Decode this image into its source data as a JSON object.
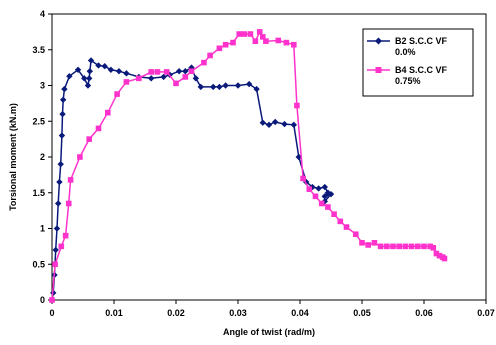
{
  "chart_data": {
    "type": "line",
    "xlabel": "Angle of twist (rad/m)",
    "ylabel": "Torsional moment (kN.m)",
    "xlim": [
      0,
      0.07
    ],
    "ylim": [
      0,
      4
    ],
    "xticks": [
      "0",
      "0.01",
      "0.02",
      "0.03",
      "0.04",
      "0.05",
      "0.06",
      "0.07"
    ],
    "yticks": [
      "0",
      "0.5",
      "1",
      "1.5",
      "2",
      "2.5",
      "3",
      "3.5",
      "4"
    ],
    "grid": false,
    "legend_position": "right",
    "series": [
      {
        "legend_line1": "B2 S.C.C VF",
        "legend_line2": "0.0%",
        "color": "#0a1a7a",
        "marker": "diamond",
        "points": [
          [
            0.0,
            0.0
          ],
          [
            0.0002,
            0.1
          ],
          [
            0.0004,
            0.35
          ],
          [
            0.0006,
            0.7
          ],
          [
            0.0008,
            1.0
          ],
          [
            0.001,
            1.35
          ],
          [
            0.0012,
            1.65
          ],
          [
            0.0014,
            1.9
          ],
          [
            0.0016,
            2.3
          ],
          [
            0.0017,
            2.6
          ],
          [
            0.0018,
            2.8
          ],
          [
            0.002,
            2.95
          ],
          [
            0.0028,
            3.13
          ],
          [
            0.0042,
            3.22
          ],
          [
            0.0052,
            3.1
          ],
          [
            0.0058,
            3.0
          ],
          [
            0.006,
            3.1
          ],
          [
            0.0061,
            3.2
          ],
          [
            0.0063,
            3.35
          ],
          [
            0.0075,
            3.28
          ],
          [
            0.0085,
            3.27
          ],
          [
            0.0095,
            3.22
          ],
          [
            0.0108,
            3.2
          ],
          [
            0.012,
            3.17
          ],
          [
            0.014,
            3.12
          ],
          [
            0.016,
            3.1
          ],
          [
            0.018,
            3.12
          ],
          [
            0.019,
            3.15
          ],
          [
            0.0205,
            3.2
          ],
          [
            0.0215,
            3.2
          ],
          [
            0.0225,
            3.25
          ],
          [
            0.0232,
            3.1
          ],
          [
            0.024,
            2.98
          ],
          [
            0.026,
            2.98
          ],
          [
            0.027,
            2.98
          ],
          [
            0.028,
            3.0
          ],
          [
            0.03,
            3.0
          ],
          [
            0.0318,
            3.02
          ],
          [
            0.033,
            2.95
          ],
          [
            0.034,
            2.48
          ],
          [
            0.035,
            2.45
          ],
          [
            0.036,
            2.49
          ],
          [
            0.0375,
            2.46
          ],
          [
            0.039,
            2.45
          ],
          [
            0.0398,
            2.0
          ],
          [
            0.041,
            1.65
          ],
          [
            0.042,
            1.58
          ],
          [
            0.043,
            1.56
          ],
          [
            0.044,
            1.58
          ],
          [
            0.0445,
            1.5
          ],
          [
            0.044,
            1.45
          ],
          [
            0.045,
            1.48
          ],
          [
            0.044,
            1.38
          ]
        ]
      },
      {
        "legend_line1": "B4 S.C.C VF",
        "legend_line2": "0.75%",
        "color": "#ff33cc",
        "marker": "square",
        "points": [
          [
            0.0,
            0.0
          ],
          [
            0.0005,
            0.5
          ],
          [
            0.0015,
            0.75
          ],
          [
            0.0022,
            0.9
          ],
          [
            0.0027,
            1.35
          ],
          [
            0.003,
            1.68
          ],
          [
            0.0045,
            2.0
          ],
          [
            0.006,
            2.25
          ],
          [
            0.0075,
            2.4
          ],
          [
            0.009,
            2.62
          ],
          [
            0.0105,
            2.88
          ],
          [
            0.012,
            3.05
          ],
          [
            0.014,
            3.1
          ],
          [
            0.016,
            3.19
          ],
          [
            0.017,
            3.19
          ],
          [
            0.0185,
            3.19
          ],
          [
            0.02,
            3.03
          ],
          [
            0.0215,
            3.12
          ],
          [
            0.0225,
            3.2
          ],
          [
            0.0245,
            3.32
          ],
          [
            0.0255,
            3.42
          ],
          [
            0.027,
            3.52
          ],
          [
            0.028,
            3.57
          ],
          [
            0.0292,
            3.6
          ],
          [
            0.0302,
            3.72
          ],
          [
            0.031,
            3.72
          ],
          [
            0.032,
            3.72
          ],
          [
            0.0328,
            3.62
          ],
          [
            0.0335,
            3.75
          ],
          [
            0.034,
            3.68
          ],
          [
            0.0345,
            3.62
          ],
          [
            0.0365,
            3.63
          ],
          [
            0.0378,
            3.6
          ],
          [
            0.039,
            3.57
          ],
          [
            0.0395,
            2.72
          ],
          [
            0.0405,
            1.7
          ],
          [
            0.0415,
            1.55
          ],
          [
            0.0425,
            1.45
          ],
          [
            0.0435,
            1.35
          ],
          [
            0.0445,
            1.3
          ],
          [
            0.0455,
            1.2
          ],
          [
            0.0465,
            1.1
          ],
          [
            0.0475,
            1.02
          ],
          [
            0.049,
            0.92
          ],
          [
            0.05,
            0.8
          ],
          [
            0.051,
            0.77
          ],
          [
            0.052,
            0.8
          ],
          [
            0.053,
            0.75
          ],
          [
            0.054,
            0.75
          ],
          [
            0.055,
            0.75
          ],
          [
            0.056,
            0.75
          ],
          [
            0.057,
            0.75
          ],
          [
            0.058,
            0.75
          ],
          [
            0.059,
            0.75
          ],
          [
            0.06,
            0.75
          ],
          [
            0.061,
            0.75
          ],
          [
            0.0615,
            0.73
          ],
          [
            0.062,
            0.65
          ],
          [
            0.0625,
            0.62
          ],
          [
            0.063,
            0.6
          ],
          [
            0.0633,
            0.58
          ]
        ]
      }
    ]
  }
}
